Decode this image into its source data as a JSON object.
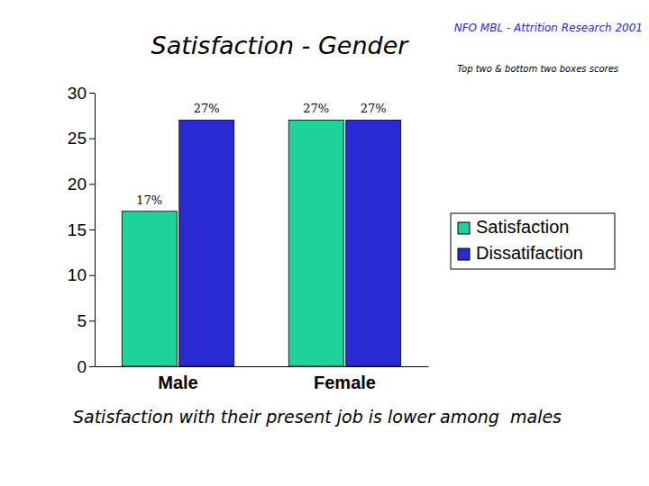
{
  "chart_data": {
    "type": "bar",
    "title": "Satisfaction - Gender",
    "subtitle": "Top two & bottom two boxes scores",
    "annotations": [
      "NFO MBL - Attrition Research 2001",
      "Satisfaction with their present job is lower among  males"
    ],
    "categories": [
      "Male",
      "Female"
    ],
    "series": [
      {
        "name": "Satisfaction",
        "color": "#1ed39a",
        "values": [
          17,
          27
        ],
        "value_labels": [
          "17%",
          "27%"
        ]
      },
      {
        "name": "Dissatifaction",
        "color": "#2a2ad2",
        "values": [
          27,
          27
        ],
        "value_labels": [
          "27%",
          "27%"
        ]
      }
    ],
    "ylim": [
      0,
      30
    ],
    "yticks": [
      0,
      5,
      10,
      15,
      20,
      25,
      30
    ],
    "grid": false,
    "legend": "right",
    "data_labels": true
  }
}
